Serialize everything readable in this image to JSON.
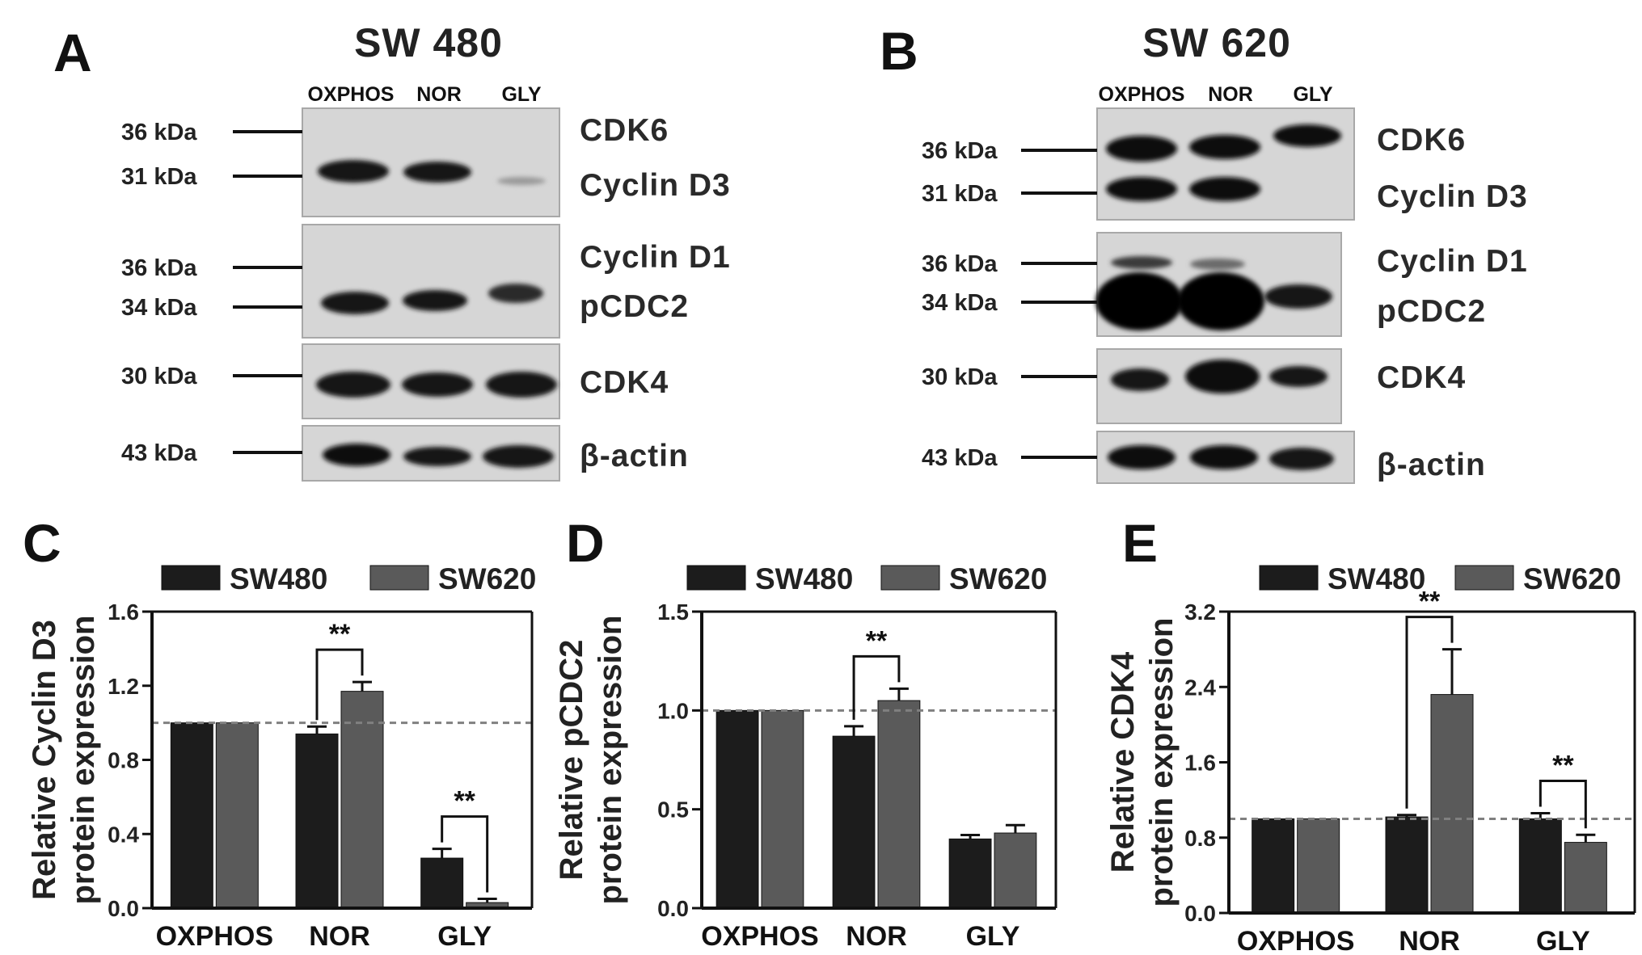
{
  "panels": {
    "A": {
      "letter": "A",
      "cell_line": "SW 480"
    },
    "B": {
      "letter": "B",
      "cell_line": "SW 620"
    },
    "C": {
      "letter": "C"
    },
    "D": {
      "letter": "D"
    },
    "E": {
      "letter": "E"
    }
  },
  "lanes": [
    "OXPHOS",
    "NOR",
    "GLY"
  ],
  "blot_A": {
    "strips": [
      {
        "markers": [
          "36 kDa",
          "31 kDa"
        ],
        "proteins": [
          "CDK6",
          "Cyclin D3"
        ]
      },
      {
        "markers": [
          "36 kDa",
          "34 kDa"
        ],
        "proteins": [
          "Cyclin D1",
          "pCDC2"
        ]
      },
      {
        "markers": [
          "30 kDa"
        ],
        "proteins": [
          "CDK4"
        ]
      },
      {
        "markers": [
          "43 kDa"
        ],
        "proteins": [
          "β-actin"
        ]
      }
    ]
  },
  "blot_B": {
    "strips": [
      {
        "markers": [
          "36 kDa",
          "31 kDa"
        ],
        "proteins": [
          "CDK6",
          "Cyclin D3"
        ]
      },
      {
        "markers": [
          "36 kDa",
          "34 kDa"
        ],
        "proteins": [
          "Cyclin D1",
          "pCDC2"
        ]
      },
      {
        "markers": [
          "30 kDa"
        ],
        "proteins": [
          "CDK4"
        ]
      },
      {
        "markers": [
          "43 kDa"
        ],
        "proteins": [
          "β-actin"
        ]
      }
    ]
  },
  "colors": {
    "sw480": "#1c1c1c",
    "sw620": "#5a5a5a",
    "dashed": "#808080"
  },
  "chart_data": [
    {
      "type": "bar",
      "panel": "C",
      "categories": [
        "OXPHOS",
        "NOR",
        "GLY"
      ],
      "series": [
        {
          "name": "SW480",
          "values": [
            1.0,
            0.94,
            0.27
          ],
          "errors": [
            0.0,
            0.04,
            0.05
          ]
        },
        {
          "name": "SW620",
          "values": [
            1.0,
            1.17,
            0.03
          ],
          "errors": [
            0.0,
            0.05,
            0.02
          ]
        }
      ],
      "ylabel": [
        "Relative Cyclin D3",
        "protein expression"
      ],
      "ylim": [
        0,
        1.6
      ],
      "yticks": [
        "0.0",
        "0.4",
        "0.8",
        "1.2",
        "1.6"
      ],
      "reference_line": 1.0,
      "significance": [
        {
          "category": "NOR",
          "label": "**"
        },
        {
          "category": "GLY",
          "label": "**"
        }
      ],
      "legend": "top"
    },
    {
      "type": "bar",
      "panel": "D",
      "categories": [
        "OXPHOS",
        "NOR",
        "GLY"
      ],
      "series": [
        {
          "name": "SW480",
          "values": [
            1.0,
            0.87,
            0.35
          ],
          "errors": [
            0.0,
            0.05,
            0.02
          ]
        },
        {
          "name": "SW620",
          "values": [
            1.0,
            1.05,
            0.38
          ],
          "errors": [
            0.0,
            0.06,
            0.04
          ]
        }
      ],
      "ylabel": [
        "Relative pCDC2",
        "protein expression"
      ],
      "ylim": [
        0,
        1.5
      ],
      "yticks": [
        "0.0",
        "0.5",
        "1.0",
        "1.5"
      ],
      "reference_line": 1.0,
      "significance": [
        {
          "category": "NOR",
          "label": "**"
        }
      ],
      "legend": "top"
    },
    {
      "type": "bar",
      "panel": "E",
      "categories": [
        "OXPHOS",
        "NOR",
        "GLY"
      ],
      "series": [
        {
          "name": "SW480",
          "values": [
            1.0,
            1.02,
            1.0
          ],
          "errors": [
            0.0,
            0.02,
            0.06
          ]
        },
        {
          "name": "SW620",
          "values": [
            1.0,
            2.32,
            0.75
          ],
          "errors": [
            0.0,
            0.48,
            0.08
          ]
        }
      ],
      "ylabel": [
        "Relative CDK4",
        "protein expression"
      ],
      "ylim": [
        0,
        3.2
      ],
      "yticks": [
        "0.0",
        "0.8",
        "1.6",
        "2.4",
        "3.2"
      ],
      "reference_line": 1.0,
      "significance": [
        {
          "category": "NOR",
          "label": "**"
        },
        {
          "category": "GLY",
          "label": "**"
        }
      ],
      "legend": "top"
    }
  ]
}
